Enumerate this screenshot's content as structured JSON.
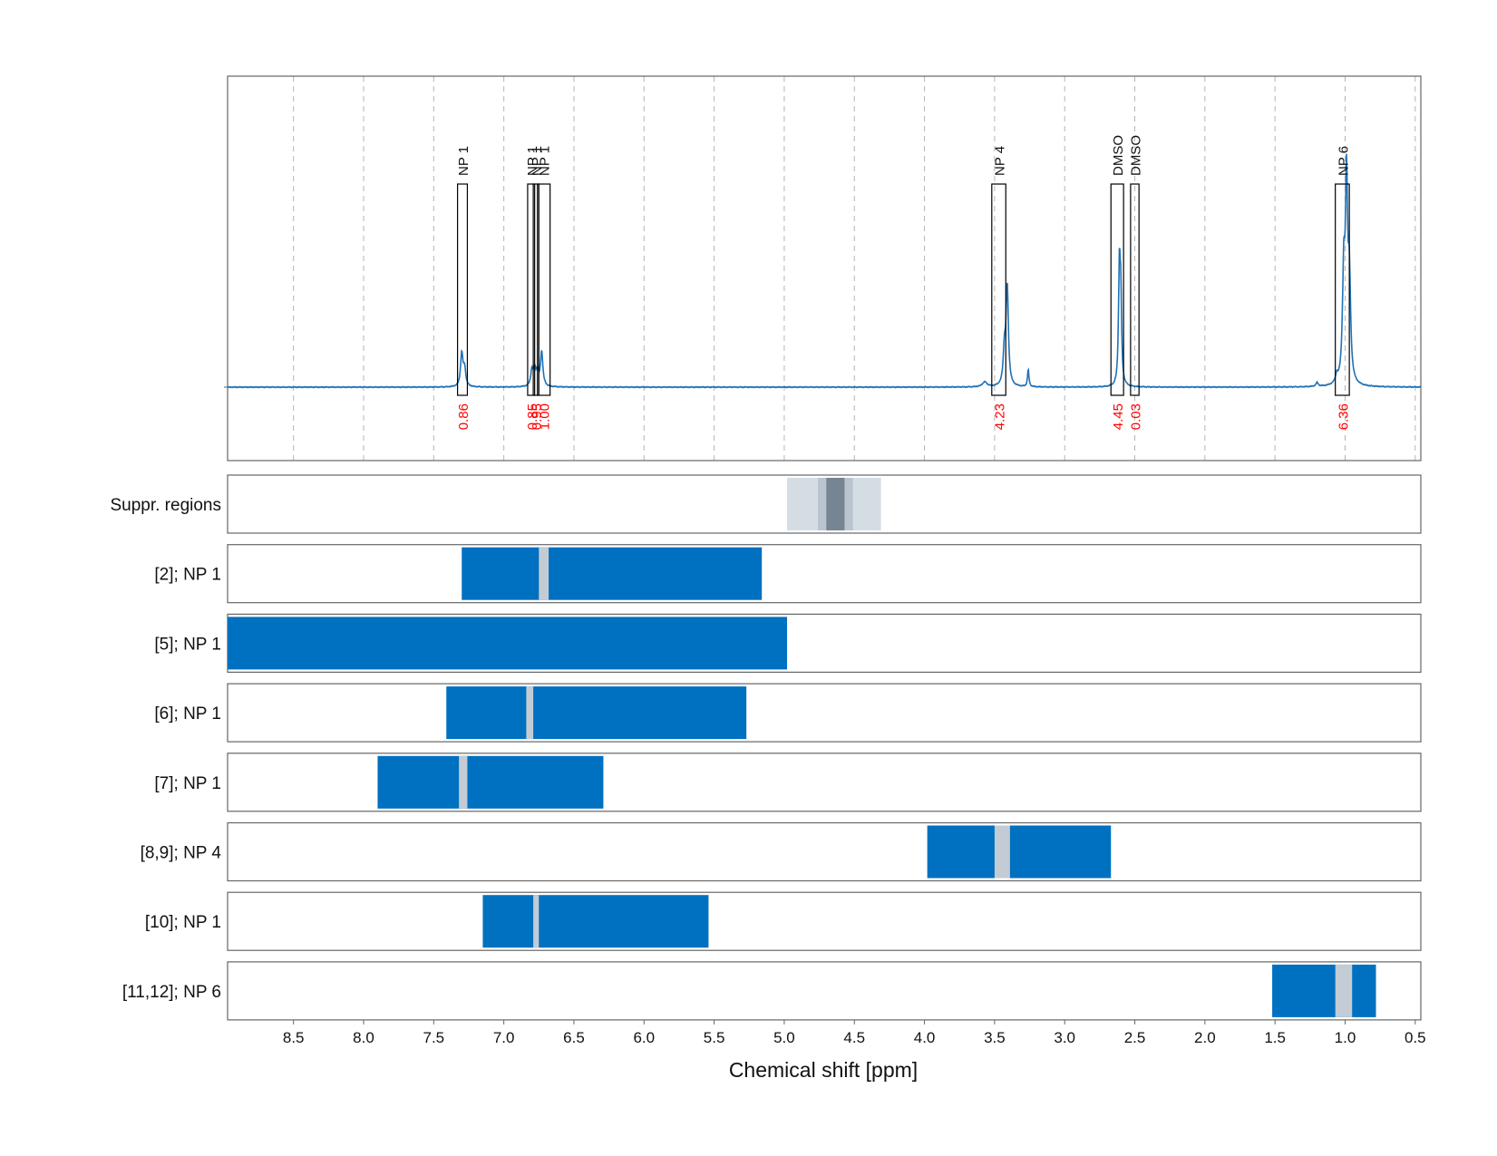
{
  "chart_data": {
    "type": "line",
    "xlabel": "Chemical shift [ppm]",
    "x_reversed": true,
    "xlim": [
      8.97,
      0.46
    ],
    "xticks": [
      "8.5",
      "8.0",
      "7.5",
      "7.0",
      "6.5",
      "6.0",
      "5.5",
      "5.0",
      "4.5",
      "4.0",
      "3.5",
      "3.0",
      "2.5",
      "2.0",
      "1.5",
      "1.0",
      "0.5"
    ],
    "grid": true,
    "colors": {
      "spectrum": "#1f72b8",
      "bar": "#0070c0",
      "bar_gap": "#c3ccd4",
      "integral_label": "#ff0000",
      "suppr_light": "#d5dde4",
      "suppr_mid": "#b9c4ce",
      "suppr_dark": "#758593"
    },
    "spectrum_peaks": [
      {
        "ppm": 7.3,
        "height": 0.17,
        "width": 0.01
      },
      {
        "ppm": 7.28,
        "height": 0.09,
        "width": 0.01
      },
      {
        "ppm": 6.8,
        "height": 0.08,
        "width": 0.01
      },
      {
        "ppm": 6.78,
        "height": 0.08,
        "width": 0.01
      },
      {
        "ppm": 6.76,
        "height": 0.07,
        "width": 0.01
      },
      {
        "ppm": 6.73,
        "height": 0.18,
        "width": 0.01
      },
      {
        "ppm": 3.57,
        "height": 0.025,
        "width": 0.02
      },
      {
        "ppm": 3.43,
        "height": 0.17,
        "width": 0.01
      },
      {
        "ppm": 3.41,
        "height": 0.51,
        "width": 0.01
      },
      {
        "ppm": 3.26,
        "height": 0.09,
        "width": 0.006
      },
      {
        "ppm": 2.61,
        "height": 0.59,
        "width": 0.007
      },
      {
        "ppm": 2.6,
        "height": 0.42,
        "width": 0.007
      },
      {
        "ppm": 1.06,
        "height": 0.04,
        "width": 0.01
      },
      {
        "ppm": 1.01,
        "height": 0.53,
        "width": 0.01
      },
      {
        "ppm": 0.99,
        "height": 1.0,
        "width": 0.01
      },
      {
        "ppm": 0.97,
        "height": 0.49,
        "width": 0.01
      },
      {
        "ppm": 1.2,
        "height": 0.02,
        "width": 0.01
      }
    ],
    "annotations": [
      {
        "label": "NP 1",
        "integral": "0.86",
        "from": 7.33,
        "to": 7.26
      },
      {
        "label": "NP 1",
        "integral": "0.85",
        "from": 6.83,
        "to": 6.78
      },
      {
        "label": "NP 1",
        "integral": "0.95",
        "from": 6.79,
        "to": 6.75
      },
      {
        "label": "NP 1",
        "integral": "1.00",
        "from": 6.76,
        "to": 6.67
      },
      {
        "label": "NP 4",
        "integral": "4.23",
        "from": 3.52,
        "to": 3.42
      },
      {
        "label": "DMSO",
        "integral": "4.45",
        "from": 2.67,
        "to": 2.58
      },
      {
        "label": "DMSO",
        "integral": "0.03",
        "from": 2.53,
        "to": 2.47
      },
      {
        "label": "NP 6",
        "integral": "6.36",
        "from": 1.07,
        "to": 0.97
      }
    ],
    "rows": [
      {
        "label": "Suppr. regions",
        "type": "suppression",
        "light": [
          4.98,
          4.31
        ],
        "mid": [
          4.76,
          4.51
        ],
        "dark": [
          4.7,
          4.57
        ]
      },
      {
        "label": "[2]; NP 1",
        "type": "range",
        "from": 7.3,
        "to": 5.16,
        "gap": [
          6.75,
          6.68
        ]
      },
      {
        "label": "[5]; NP 1",
        "type": "range",
        "from": 8.97,
        "to": 4.98,
        "gap": null
      },
      {
        "label": "[6]; NP 1",
        "type": "range",
        "from": 7.41,
        "to": 5.27,
        "gap": [
          6.84,
          6.79
        ]
      },
      {
        "label": "[7]; NP 1",
        "type": "range",
        "from": 7.9,
        "to": 6.29,
        "gap": [
          7.32,
          7.26
        ]
      },
      {
        "label": "[8,9]; NP 4",
        "type": "range",
        "from": 3.98,
        "to": 2.67,
        "gap": [
          3.5,
          3.39
        ]
      },
      {
        "label": "[10]; NP 1",
        "type": "range",
        "from": 7.15,
        "to": 5.54,
        "gap": [
          6.79,
          6.75
        ]
      },
      {
        "label": "[11,12]; NP 6",
        "type": "range",
        "from": 1.52,
        "to": 0.78,
        "gap": [
          1.07,
          0.95
        ]
      }
    ]
  }
}
